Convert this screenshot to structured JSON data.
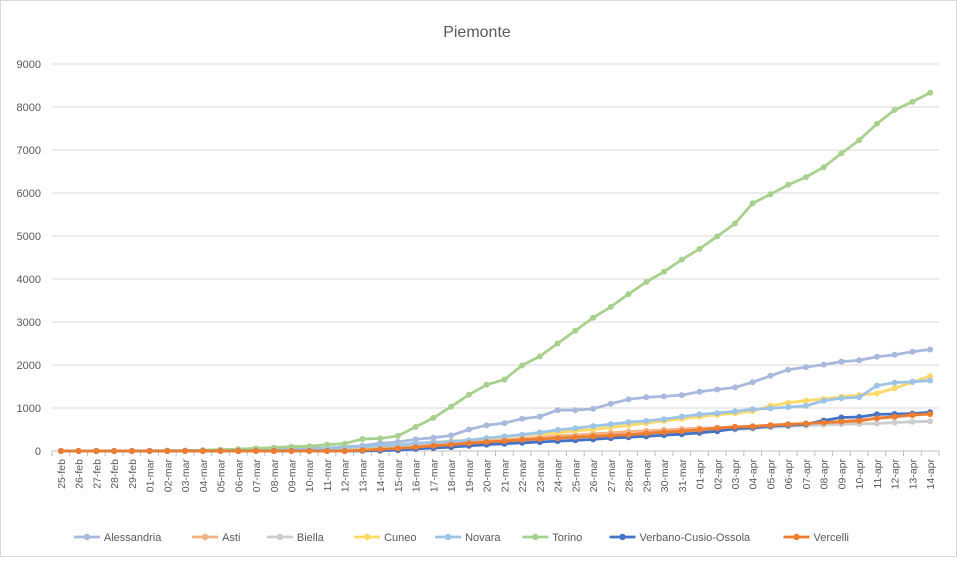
{
  "chart_data": {
    "type": "line",
    "title": "Piemonte",
    "xlabel": "",
    "ylabel": "",
    "ylim": [
      0,
      9000
    ],
    "yticks": [
      0,
      1000,
      2000,
      3000,
      4000,
      5000,
      6000,
      7000,
      8000,
      9000
    ],
    "grid": true,
    "legend_position": "bottom",
    "x": [
      "25-feb",
      "26-feb",
      "27-feb",
      "28-feb",
      "29-feb",
      "01-mar",
      "02-mar",
      "03-mar",
      "04-mar",
      "05-mar",
      "06-mar",
      "07-mar",
      "08-mar",
      "09-mar",
      "10-mar",
      "11-mar",
      "12-mar",
      "13-mar",
      "14-mar",
      "15-mar",
      "16-mar",
      "17-mar",
      "18-mar",
      "19-mar",
      "20-mar",
      "21-mar",
      "22-mar",
      "23-mar",
      "24-mar",
      "25-mar",
      "26-mar",
      "27-mar",
      "28-mar",
      "29-mar",
      "30-mar",
      "31-mar",
      "01-apr",
      "02-apr",
      "03-apr",
      "04-apr",
      "05-apr",
      "06-apr",
      "07-apr",
      "08-apr",
      "09-apr",
      "10-apr",
      "11-apr",
      "12-apr",
      "13-apr",
      "14-apr"
    ],
    "series": [
      {
        "name": "Alessandria",
        "color": "#a9b8dd",
        "values": [
          0,
          0,
          0,
          0,
          0,
          5,
          10,
          10,
          12,
          15,
          20,
          25,
          30,
          40,
          55,
          70,
          95,
          120,
          180,
          210,
          270,
          310,
          360,
          500,
          600,
          650,
          750,
          800,
          950,
          950,
          980,
          1100,
          1200,
          1250,
          1270,
          1300,
          1380,
          1430,
          1480,
          1600,
          1750,
          1890,
          1950,
          2010,
          2080,
          2110,
          2190,
          2240,
          2310,
          2360
        ]
      },
      {
        "name": "Asti",
        "color": "#f4b183",
        "values": [
          0,
          0,
          0,
          0,
          0,
          0,
          0,
          0,
          0,
          0,
          0,
          0,
          5,
          10,
          15,
          20,
          30,
          40,
          60,
          80,
          110,
          140,
          170,
          200,
          230,
          260,
          290,
          320,
          350,
          370,
          400,
          420,
          450,
          470,
          490,
          510,
          530,
          540,
          560,
          580,
          600,
          610,
          640,
          660,
          690,
          720,
          760,
          790,
          830,
          860
        ]
      },
      {
        "name": "Biella",
        "color": "#cdcdcd",
        "values": [
          0,
          0,
          0,
          0,
          0,
          0,
          0,
          0,
          0,
          0,
          0,
          0,
          5,
          10,
          15,
          20,
          30,
          40,
          60,
          80,
          100,
          120,
          150,
          180,
          200,
          220,
          240,
          270,
          300,
          320,
          340,
          360,
          380,
          400,
          420,
          440,
          460,
          480,
          500,
          520,
          550,
          570,
          590,
          610,
          620,
          630,
          640,
          660,
          680,
          690
        ]
      },
      {
        "name": "Cuneo",
        "color": "#ffd966",
        "values": [
          0,
          0,
          0,
          0,
          0,
          0,
          0,
          0,
          0,
          0,
          0,
          5,
          10,
          15,
          25,
          35,
          50,
          70,
          100,
          140,
          180,
          200,
          230,
          250,
          300,
          330,
          370,
          400,
          420,
          470,
          500,
          550,
          600,
          650,
          700,
          750,
          800,
          840,
          880,
          930,
          1050,
          1120,
          1170,
          1210,
          1260,
          1300,
          1340,
          1460,
          1600,
          1740
        ]
      },
      {
        "name": "Novara",
        "color": "#9dc3e6",
        "values": [
          0,
          0,
          0,
          0,
          0,
          0,
          0,
          0,
          0,
          0,
          10,
          20,
          30,
          40,
          50,
          60,
          80,
          100,
          120,
          140,
          180,
          200,
          220,
          250,
          300,
          340,
          380,
          430,
          490,
          530,
          580,
          620,
          670,
          700,
          740,
          800,
          850,
          880,
          920,
          970,
          990,
          1020,
          1050,
          1170,
          1230,
          1250,
          1520,
          1590,
          1610,
          1640
        ]
      },
      {
        "name": "Torino",
        "color": "#a9d18e",
        "values": [
          0,
          0,
          0,
          0,
          0,
          0,
          5,
          10,
          20,
          30,
          45,
          60,
          80,
          100,
          110,
          150,
          170,
          280,
          290,
          350,
          560,
          770,
          1030,
          1310,
          1540,
          1660,
          1990,
          2200,
          2500,
          2800,
          3100,
          3350,
          3650,
          3930,
          4170,
          4450,
          4700,
          4990,
          5290,
          5760,
          5970,
          6190,
          6370,
          6600,
          6920,
          7230,
          7610,
          7930,
          8120,
          8330
        ]
      },
      {
        "name": "Verbano-Cusio-Ossola",
        "color": "#4472c4",
        "values": [
          0,
          0,
          0,
          0,
          0,
          0,
          0,
          0,
          0,
          0,
          0,
          0,
          0,
          0,
          0,
          0,
          0,
          5,
          10,
          20,
          50,
          70,
          90,
          120,
          150,
          170,
          190,
          210,
          230,
          250,
          270,
          300,
          320,
          340,
          370,
          390,
          420,
          460,
          520,
          540,
          580,
          600,
          620,
          710,
          780,
          790,
          850,
          860,
          870,
          900
        ]
      },
      {
        "name": "Vercelli",
        "color": "#ed7d31",
        "values": [
          0,
          0,
          0,
          0,
          0,
          0,
          0,
          0,
          0,
          0,
          0,
          0,
          0,
          0,
          0,
          0,
          0,
          20,
          40,
          60,
          90,
          120,
          150,
          180,
          210,
          230,
          260,
          280,
          300,
          320,
          340,
          360,
          380,
          410,
          440,
          460,
          490,
          530,
          560,
          570,
          600,
          620,
          640,
          660,
          680,
          700,
          760,
          800,
          840,
          860
        ]
      }
    ]
  }
}
